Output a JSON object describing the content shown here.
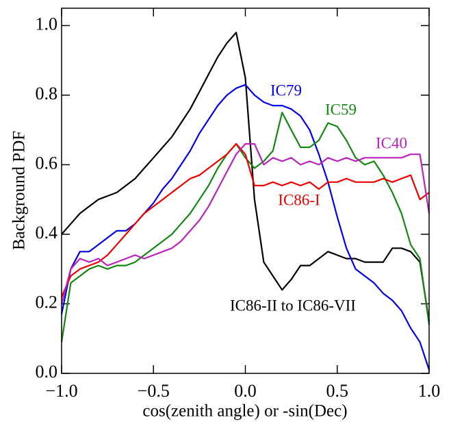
{
  "chart_data": {
    "type": "line",
    "x_label": "cos(zenith angle) or -sin(Dec)",
    "y_label": "Background PDF",
    "x": [
      -1.0,
      -0.95,
      -0.9,
      -0.85,
      -0.8,
      -0.75,
      -0.7,
      -0.65,
      -0.6,
      -0.55,
      -0.5,
      -0.45,
      -0.4,
      -0.35,
      -0.3,
      -0.25,
      -0.2,
      -0.15,
      -0.1,
      -0.05,
      0.0,
      0.05,
      0.1,
      0.15,
      0.2,
      0.25,
      0.3,
      0.35,
      0.4,
      0.45,
      0.5,
      0.55,
      0.6,
      0.65,
      0.7,
      0.75,
      0.8,
      0.85,
      0.9,
      0.95,
      1.0
    ],
    "series": [
      {
        "name": "IC86-II to IC86-VII",
        "color": "#000000",
        "values": [
          0.4,
          0.43,
          0.46,
          0.48,
          0.5,
          0.51,
          0.52,
          0.54,
          0.56,
          0.59,
          0.62,
          0.65,
          0.68,
          0.72,
          0.76,
          0.81,
          0.86,
          0.91,
          0.95,
          0.98,
          0.85,
          0.5,
          0.32,
          0.28,
          0.24,
          0.27,
          0.31,
          0.31,
          0.33,
          0.35,
          0.34,
          0.33,
          0.33,
          0.32,
          0.32,
          0.32,
          0.36,
          0.36,
          0.35,
          0.32,
          0.15
        ]
      },
      {
        "name": "IC79",
        "color": "#0000ee",
        "values": [
          0.17,
          0.3,
          0.35,
          0.35,
          0.37,
          0.39,
          0.41,
          0.41,
          0.43,
          0.46,
          0.49,
          0.53,
          0.56,
          0.6,
          0.64,
          0.69,
          0.73,
          0.77,
          0.8,
          0.82,
          0.83,
          0.8,
          0.78,
          0.77,
          0.77,
          0.76,
          0.74,
          0.7,
          0.63,
          0.55,
          0.45,
          0.36,
          0.3,
          0.28,
          0.26,
          0.23,
          0.21,
          0.18,
          0.13,
          0.09,
          0.01
        ]
      },
      {
        "name": "IC59",
        "color": "#118811",
        "values": [
          0.09,
          0.26,
          0.28,
          0.3,
          0.31,
          0.3,
          0.31,
          0.31,
          0.32,
          0.34,
          0.36,
          0.38,
          0.4,
          0.43,
          0.46,
          0.5,
          0.54,
          0.59,
          0.63,
          0.66,
          0.62,
          0.59,
          0.61,
          0.64,
          0.75,
          0.7,
          0.65,
          0.65,
          0.67,
          0.72,
          0.71,
          0.67,
          0.62,
          0.6,
          0.61,
          0.57,
          0.52,
          0.46,
          0.37,
          0.33,
          0.14
        ]
      },
      {
        "name": "IC86-I",
        "color": "#ee0000",
        "values": [
          0.22,
          0.28,
          0.3,
          0.31,
          0.32,
          0.34,
          0.37,
          0.4,
          0.43,
          0.46,
          0.48,
          0.5,
          0.52,
          0.54,
          0.56,
          0.57,
          0.59,
          0.61,
          0.63,
          0.66,
          0.63,
          0.54,
          0.54,
          0.55,
          0.54,
          0.55,
          0.54,
          0.55,
          0.53,
          0.55,
          0.55,
          0.56,
          0.55,
          0.55,
          0.55,
          0.56,
          0.55,
          0.56,
          0.57,
          0.5,
          0.52
        ]
      },
      {
        "name": "IC40",
        "color": "#bb22bb",
        "values": [
          0.2,
          0.3,
          0.33,
          0.32,
          0.33,
          0.31,
          0.32,
          0.33,
          0.34,
          0.33,
          0.34,
          0.35,
          0.36,
          0.38,
          0.41,
          0.44,
          0.48,
          0.53,
          0.58,
          0.63,
          0.66,
          0.66,
          0.6,
          0.62,
          0.61,
          0.62,
          0.6,
          0.61,
          0.6,
          0.62,
          0.61,
          0.62,
          0.61,
          0.62,
          0.62,
          0.62,
          0.62,
          0.62,
          0.63,
          0.63,
          0.46
        ]
      }
    ],
    "xlim": [
      -1.0,
      1.0
    ],
    "ylim": [
      0,
      1.05
    ],
    "xticks": [
      {
        "value": -1.0,
        "label": "−1.0"
      },
      {
        "value": -0.5,
        "label": "−0.5"
      },
      {
        "value": 0,
        "label": "0.0"
      },
      0.5,
      {
        "value": 1.0,
        "label": "1.0"
      }
    ],
    "yticks": [
      {
        "value": 0,
        "label": "0.0"
      },
      0.2,
      0.4,
      0.6,
      0.8,
      {
        "value": 1.0,
        "label": "1.0"
      }
    ]
  }
}
